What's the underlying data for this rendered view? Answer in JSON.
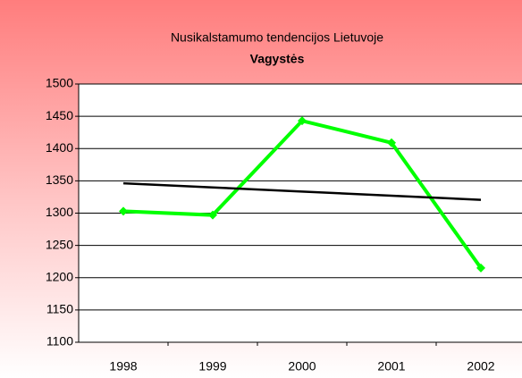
{
  "chart_data": {
    "type": "line",
    "title": "Nusikalstamumo tendencijos Lietuvoje",
    "subtitle": "Vagystės",
    "categories": [
      "1998",
      "1999",
      "2000",
      "2001",
      "2002"
    ],
    "series": [
      {
        "color": "#00ff00",
        "values": [
          1303,
          1297,
          1443,
          1409,
          1215
        ]
      },
      {
        "color": "#000000",
        "values": [
          1346.2,
          1339.8,
          1333.4,
          1327,
          1320.6
        ]
      }
    ],
    "ylim": [
      1100,
      1500
    ],
    "yticks": [
      1100,
      1150,
      1200,
      1250,
      1300,
      1350,
      1400,
      1450,
      1500
    ],
    "grid": true
  }
}
